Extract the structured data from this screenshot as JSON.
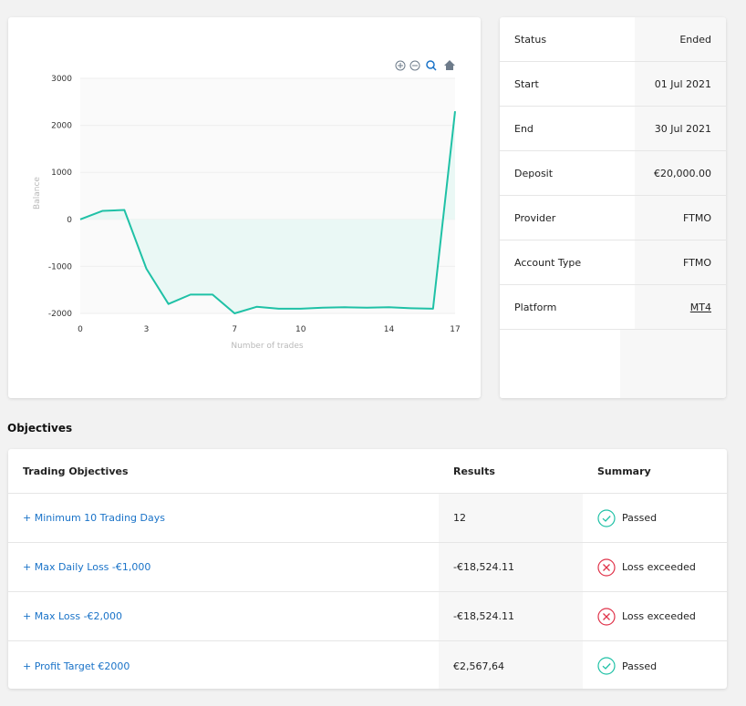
{
  "chart_data": {
    "type": "area",
    "title": "",
    "xlabel": "Number of trades",
    "ylabel": "Balance",
    "xlim": [
      0,
      17
    ],
    "ylim": [
      -2000,
      3000
    ],
    "xticks": [
      0,
      3,
      7,
      10,
      14,
      17
    ],
    "yticks": [
      3000,
      2000,
      1000,
      0,
      -1000,
      -2000
    ],
    "x": [
      0,
      1,
      2,
      3,
      4,
      5,
      6,
      7,
      8,
      9,
      10,
      11,
      12,
      13,
      14,
      15,
      16,
      17
    ],
    "y": [
      0,
      180,
      200,
      -1050,
      -1800,
      -1600,
      -1600,
      -2000,
      -1860,
      -1900,
      -1900,
      -1880,
      -1870,
      -1880,
      -1870,
      -1890,
      -1900,
      2300
    ],
    "color": "#1fc1a6",
    "fill": "#eaf8f5",
    "grid": true
  },
  "chart_toolbar": [
    "zoom-in-icon",
    "zoom-out-icon",
    "magnifier-icon",
    "home-icon"
  ],
  "info": [
    {
      "label": "Status",
      "value": "Ended"
    },
    {
      "label": "Start",
      "value": "01 Jul 2021"
    },
    {
      "label": "End",
      "value": "30 Jul 2021"
    },
    {
      "label": "Deposit",
      "value": "€20,000.00"
    },
    {
      "label": "Provider",
      "value": "FTMO"
    },
    {
      "label": "Account Type",
      "value": "FTMO"
    },
    {
      "label": "Platform",
      "value": "MT4"
    }
  ],
  "objectives": {
    "title": "Objectives",
    "headers": [
      "Trading Objectives",
      "Results",
      "Summary"
    ],
    "rows": [
      {
        "name": "+ Minimum 10 Trading Days",
        "result": "12",
        "summary": "Passed",
        "status": "pass"
      },
      {
        "name": "+ Max Daily Loss -€1,000",
        "result": "-€18,524.11",
        "summary": "Loss exceeded",
        "status": "fail"
      },
      {
        "name": "+ Max Loss -€2,000",
        "result": "-€18,524.11",
        "summary": "Loss exceeded",
        "status": "fail"
      },
      {
        "name": "+ Profit Target €2000",
        "result": "€2,567,64",
        "summary": "Passed",
        "status": "pass"
      }
    ]
  },
  "colors": {
    "pass": "#1fc1a6",
    "fail": "#e0334a",
    "link": "#1a73c8"
  }
}
